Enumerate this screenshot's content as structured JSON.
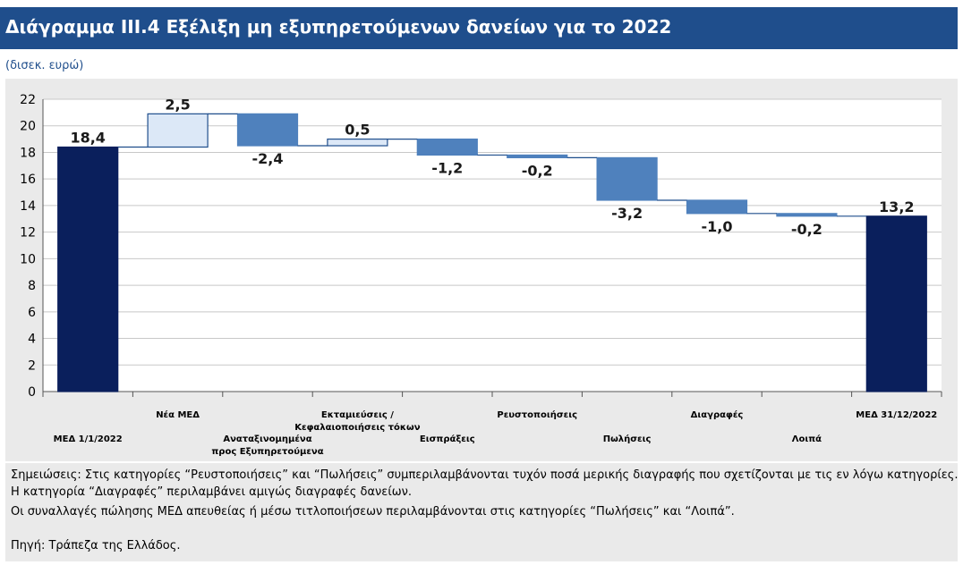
{
  "title": "Διάγραμμα ΙΙΙ.4 Εξέλιξη μη εξυπηρετούμενων δανείων για το 2022",
  "unit": "(δισεκ. ευρώ)",
  "notes": [
    "Σημειώσεις: Στις κατηγορίες “Ρευστοποιήσεις” και “Πωλήσεις” συμπεριλαμβάνονται τυχόν ποσά μερικής διαγραφής που σχετίζονται με τις εν λόγω κατηγορίες.",
    "Η κατηγορία “Διαγραφές” περιλαμβάνει αμιγώς διαγραφές δανείων.",
    "Οι συναλλαγές πώλησης ΜΕΔ απευθείας ή μέσω τιτλοποιήσεων περιλαμβάνονται στις κατηγορίες “Πωλήσεις” και “Λοιπά”.",
    "Πηγή: Τράπεζα της Ελλάδος."
  ],
  "colors": {
    "total": "#0a1f5c",
    "increase_fill": "#dce8f7",
    "increase_stroke": "#1f4e8c",
    "decrease": "#4f81bd",
    "title_bg": "#1f4e8c"
  },
  "chart_data": {
    "type": "bar",
    "subtype": "waterfall",
    "ylim": [
      0,
      22
    ],
    "yticks": [
      0,
      2,
      4,
      6,
      8,
      10,
      12,
      14,
      16,
      18,
      20,
      22
    ],
    "categories": [
      {
        "label": [
          "ΜΕΔ 1/1/2022"
        ],
        "value": 18.4,
        "value_label": "18,4",
        "kind": "total"
      },
      {
        "label": [
          "Νέα ΜΕΔ"
        ],
        "value": 2.5,
        "value_label": "2,5",
        "kind": "increase"
      },
      {
        "label": [
          "Αναταξινομημένα",
          "προς Εξυπηρετούμενα"
        ],
        "value": -2.4,
        "value_label": "-2,4",
        "kind": "decrease"
      },
      {
        "label": [
          "Εκταμιεύσεις /",
          "Κεφαλαιοποιήσεις τόκων"
        ],
        "value": 0.5,
        "value_label": "0,5",
        "kind": "increase"
      },
      {
        "label": [
          "Εισπράξεις"
        ],
        "value": -1.2,
        "value_label": "-1,2",
        "kind": "decrease"
      },
      {
        "label": [
          "Ρευστοποιήσεις"
        ],
        "value": -0.2,
        "value_label": "-0,2",
        "kind": "decrease"
      },
      {
        "label": [
          "Πωλήσεις"
        ],
        "value": -3.2,
        "value_label": "-3,2",
        "kind": "decrease"
      },
      {
        "label": [
          "Διαγραφές"
        ],
        "value": -1.0,
        "value_label": "-1,0",
        "kind": "decrease"
      },
      {
        "label": [
          "Λοιπά"
        ],
        "value": -0.2,
        "value_label": "-0,2",
        "kind": "decrease"
      },
      {
        "label": [
          "ΜΕΔ 31/12/2022"
        ],
        "value": 13.2,
        "value_label": "13,2",
        "kind": "total"
      }
    ]
  }
}
